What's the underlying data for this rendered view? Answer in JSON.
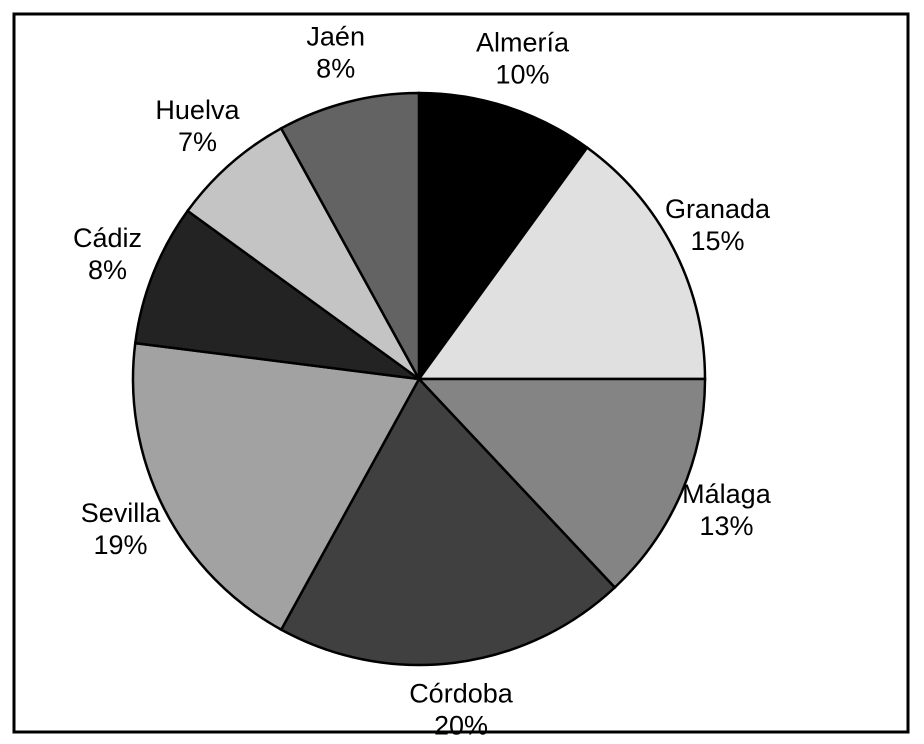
{
  "chart_data": {
    "type": "pie",
    "categories": [
      "Almería",
      "Granada",
      "Málaga",
      "Córdoba",
      "Sevilla",
      "Cádiz",
      "Huelva",
      "Jaén"
    ],
    "values": [
      10,
      15,
      13,
      20,
      19,
      8,
      7,
      8
    ],
    "value_labels": [
      "10%",
      "15%",
      "13%",
      "20%",
      "19%",
      "8%",
      "7%",
      "8%"
    ],
    "colors": [
      "#000000",
      "#e0e0e0",
      "#848484",
      "#404040",
      "#a2a2a2",
      "#232323",
      "#c4c4c4",
      "#636363"
    ]
  }
}
